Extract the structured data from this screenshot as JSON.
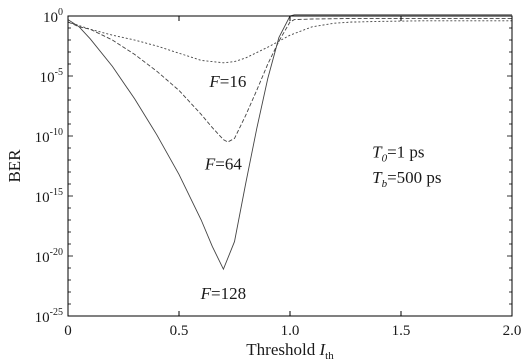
{
  "chart_data": {
    "type": "line",
    "xlabel": "Threshold",
    "xlabel_sub": "th",
    "xlabel_var": "I",
    "ylabel": "BER",
    "xlim": [
      0,
      2
    ],
    "ylim_exp": [
      -25,
      0
    ],
    "y_scale": "log",
    "grid": false,
    "x_ticks": [
      "0",
      "0.5",
      "1.0",
      "1.5",
      "2.0"
    ],
    "y_ticks": [
      {
        "base": "10",
        "exp": "0"
      },
      {
        "base": "10",
        "exp": "-5"
      },
      {
        "base": "10",
        "exp": "-10"
      },
      {
        "base": "10",
        "exp": "-15"
      },
      {
        "base": "10",
        "exp": "-20"
      },
      {
        "base": "10",
        "exp": "-25"
      }
    ],
    "series": [
      {
        "name": "F=16",
        "dash": "2,2",
        "x": [
          0,
          0.1,
          0.2,
          0.3,
          0.4,
          0.5,
          0.6,
          0.7,
          0.75,
          0.8,
          0.9,
          1.0,
          1.1,
          1.2,
          1.28,
          1.3,
          1.4,
          1.6,
          1.8,
          2.0
        ],
        "log10_ber": [
          -0.5,
          -1.1,
          -1.6,
          -2.0,
          -2.5,
          -3.1,
          -3.7,
          -3.9,
          -3.8,
          -3.5,
          -2.6,
          -1.6,
          -0.9,
          -0.6,
          -0.5,
          -0.5,
          -0.45,
          -0.4,
          -0.4,
          -0.4
        ]
      },
      {
        "name": "F=64",
        "dash": "4,2",
        "x": [
          0,
          0.05,
          0.1,
          0.2,
          0.3,
          0.4,
          0.5,
          0.6,
          0.65,
          0.7,
          0.72,
          0.75,
          0.8,
          0.85,
          0.9,
          0.95,
          1.0,
          1.02,
          1.1,
          1.3,
          1.6,
          2.0
        ],
        "log10_ber": [
          -0.5,
          -0.9,
          -1.1,
          -2.0,
          -3.2,
          -4.6,
          -6.2,
          -8.2,
          -9.3,
          -10.3,
          -10.5,
          -10.2,
          -8.3,
          -6.2,
          -4.0,
          -2.1,
          -0.5,
          -0.3,
          -0.25,
          -0.2,
          -0.2,
          -0.2
        ]
      },
      {
        "name": "F=128",
        "dash": "",
        "x": [
          0,
          0.05,
          0.1,
          0.2,
          0.3,
          0.4,
          0.5,
          0.6,
          0.65,
          0.7,
          0.75,
          0.8,
          0.85,
          0.9,
          0.95,
          1.0,
          1.02,
          1.1,
          1.3,
          1.6,
          2.0
        ],
        "log10_ber": [
          -0.3,
          -0.9,
          -1.9,
          -4.2,
          -6.9,
          -9.9,
          -13.2,
          -17.0,
          -19.2,
          -21.1,
          -18.8,
          -14.0,
          -9.4,
          -5.2,
          -1.8,
          0.0,
          0.1,
          0.1,
          0.1,
          0.1,
          0.1
        ]
      }
    ],
    "annotations": [
      {
        "kind": "F",
        "var": "F",
        "value": "=16",
        "x": 0.72,
        "log10_ber": -5.9
      },
      {
        "kind": "F",
        "var": "F",
        "value": "=64",
        "x": 0.7,
        "log10_ber": -12.8
      },
      {
        "kind": "F",
        "var": "F",
        "value": "=128",
        "x": 0.7,
        "log10_ber": -23.6
      }
    ],
    "params": [
      {
        "var": "T",
        "sub": "0",
        "value": "=1 ps",
        "x": 1.37,
        "log10_ber": -11.8
      },
      {
        "var": "T",
        "sub": "b",
        "value": "=500 ps",
        "x": 1.37,
        "log10_ber": -13.9
      }
    ]
  }
}
